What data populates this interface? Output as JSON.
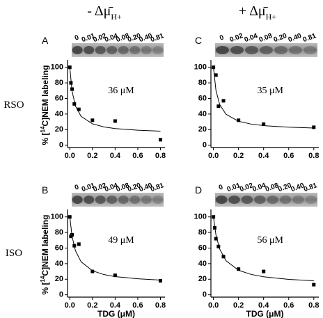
{
  "column_titles": [
    {
      "main": "- Δμ̄",
      "sub": "H+"
    },
    {
      "main": "+ Δμ̄",
      "sub": "H+"
    }
  ],
  "row_labels": [
    "RSO",
    "ISO"
  ],
  "chart_data": [
    {
      "type": "scatter",
      "panel": "A",
      "lane_labels": [
        "0",
        "0.01",
        "0.02",
        "0.04",
        "0.08",
        "0.20",
        "0.40",
        "0.81"
      ],
      "annotation": "36 μM",
      "y_label": {
        "pre": "% [",
        "sup": "14",
        "post": "C]NEM labeling"
      },
      "x": [
        0,
        0.01,
        0.02,
        0.04,
        0.08,
        0.2,
        0.4,
        0.8
      ],
      "values": [
        100,
        80,
        72,
        53,
        46,
        32,
        31,
        7
      ],
      "color": "#000000",
      "curve": {
        "x": [
          0,
          0.02,
          0.05,
          0.1,
          0.2,
          0.3,
          0.4,
          0.6,
          0.8
        ],
        "values": [
          100,
          69.4,
          50.2,
          37,
          27.4,
          23.5,
          21.3,
          19.2,
          18
        ]
      },
      "xlim": [
        -0.02,
        0.84
      ],
      "ylim": [
        -3,
        106
      ],
      "xticks": [
        {
          "value": 0,
          "label": "0.0"
        },
        {
          "value": 0.2,
          "label": "0.2"
        },
        {
          "value": 0.4,
          "label": "0.4"
        },
        {
          "value": 0.6,
          "label": "0.6"
        },
        {
          "value": 0.8,
          "label": "0.8"
        }
      ],
      "yticks": [
        0,
        20,
        40,
        60,
        80,
        100
      ]
    },
    {
      "type": "scatter",
      "panel": "C",
      "lane_labels": [
        "0",
        "0.02",
        "0.04",
        "0.08",
        "0.20",
        "0.40",
        "0.81"
      ],
      "annotation": "35 μM",
      "x": [
        0,
        0.02,
        0.04,
        0.08,
        0.2,
        0.4,
        0.8
      ],
      "values": [
        100,
        90,
        50,
        57,
        32,
        27,
        23
      ],
      "color": "#000000",
      "curve": {
        "x": [
          0,
          0.02,
          0.05,
          0.1,
          0.2,
          0.3,
          0.4,
          0.6,
          0.8
        ],
        "values": [
          100,
          70.4,
          52.1,
          39.7,
          30.7,
          27.1,
          25.1,
          23.1,
          22
        ]
      },
      "xlim": [
        -0.02,
        0.84
      ],
      "ylim": [
        -3,
        106
      ],
      "xticks": [
        {
          "value": 0,
          "label": "0.0"
        },
        {
          "value": 0.2,
          "label": "0.2"
        },
        {
          "value": 0.4,
          "label": "0.4"
        },
        {
          "value": 0.6,
          "label": "0.6"
        },
        {
          "value": 0.8,
          "label": "0.8"
        }
      ],
      "yticks": [
        0,
        20,
        40,
        60,
        80,
        100
      ]
    },
    {
      "type": "scatter",
      "panel": "B",
      "lane_labels": [
        "0",
        "0.01",
        "0.02",
        "0.04",
        "0.08",
        "0.20",
        "0.40",
        "0.81"
      ],
      "annotation": "49 μM",
      "y_label": {
        "pre": "% [",
        "sup": "14",
        "post": "C]NEM labeling"
      },
      "x_label": "TDG (μM)",
      "x": [
        0,
        0.01,
        0.02,
        0.04,
        0.08,
        0.2,
        0.4,
        0.8
      ],
      "values": [
        100,
        75,
        77,
        63,
        65,
        30,
        25,
        18
      ],
      "color": "#000000",
      "curve": {
        "x": [
          0,
          0.02,
          0.05,
          0.1,
          0.2,
          0.3,
          0.4,
          0.6,
          0.8
        ],
        "values": [
          100,
          75.1,
          56.6,
          42.3,
          30.9,
          26,
          23.3,
          20.6,
          18.9
        ]
      },
      "xlim": [
        -0.02,
        0.84
      ],
      "ylim": [
        -3,
        106
      ],
      "xticks": [
        {
          "value": 0,
          "label": "0.0"
        },
        {
          "value": 0.2,
          "label": "0.2"
        },
        {
          "value": 0.4,
          "label": "0.4"
        },
        {
          "value": 0.6,
          "label": "0.6"
        },
        {
          "value": 0.8,
          "label": "0.8"
        }
      ],
      "yticks": [
        0,
        20,
        40,
        60,
        80,
        100
      ]
    },
    {
      "type": "scatter",
      "panel": "D",
      "lane_labels": [
        "0",
        "0.01",
        "0.02",
        "0.04",
        "0.08",
        "0.20",
        "0.40",
        "0.81"
      ],
      "annotation": "56 μM",
      "x_label": "TDG (μM)",
      "x": [
        0,
        0.01,
        0.02,
        0.04,
        0.08,
        0.2,
        0.4,
        0.8
      ],
      "values": [
        100,
        86,
        72,
        62,
        49,
        33,
        30,
        13
      ],
      "color": "#000000",
      "curve": {
        "x": [
          0,
          0.02,
          0.05,
          0.1,
          0.2,
          0.3,
          0.4,
          0.6,
          0.8
        ],
        "values": [
          100,
          76.9,
          58.6,
          43.8,
          31.5,
          26.2,
          23.1,
          19.8,
          18
        ]
      },
      "xlim": [
        -0.02,
        0.84
      ],
      "ylim": [
        -3,
        106
      ],
      "xticks": [
        {
          "value": 0,
          "label": "0.0"
        },
        {
          "value": 0.2,
          "label": "0.2"
        },
        {
          "value": 0.4,
          "label": "0.4"
        },
        {
          "value": 0.6,
          "label": "0.6"
        },
        {
          "value": 0.8,
          "label": "0.8"
        }
      ],
      "yticks": [
        0,
        20,
        40,
        60,
        80,
        100
      ]
    }
  ]
}
